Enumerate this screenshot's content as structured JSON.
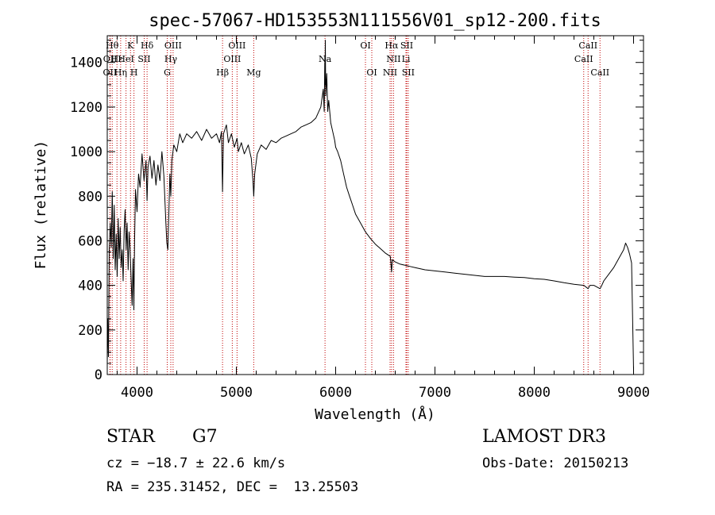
{
  "chart_data": {
    "type": "line",
    "title": "spec-57067-HD153553N111556V01_sp12-200.fits",
    "xlabel": "Wavelength (Å)",
    "ylabel": "Flux (relative)",
    "xlim": [
      3700,
      9100
    ],
    "ylim": [
      0,
      1520
    ],
    "x_ticks": [
      4000,
      5000,
      6000,
      7000,
      8000,
      9000
    ],
    "y_ticks": [
      0,
      200,
      400,
      600,
      800,
      1000,
      1200,
      1400
    ],
    "series": [
      {
        "name": "flux",
        "points": [
          [
            3700,
            50
          ],
          [
            3705,
            250
          ],
          [
            3712,
            80
          ],
          [
            3720,
            560
          ],
          [
            3730,
            680
          ],
          [
            3740,
            570
          ],
          [
            3750,
            820
          ],
          [
            3760,
            520
          ],
          [
            3770,
            760
          ],
          [
            3780,
            470
          ],
          [
            3790,
            630
          ],
          [
            3800,
            440
          ],
          [
            3810,
            700
          ],
          [
            3820,
            520
          ],
          [
            3830,
            660
          ],
          [
            3840,
            480
          ],
          [
            3850,
            560
          ],
          [
            3860,
            420
          ],
          [
            3870,
            650
          ],
          [
            3880,
            740
          ],
          [
            3890,
            560
          ],
          [
            3900,
            680
          ],
          [
            3910,
            470
          ],
          [
            3920,
            640
          ],
          [
            3930,
            560
          ],
          [
            3940,
            430
          ],
          [
            3950,
            310
          ],
          [
            3960,
            520
          ],
          [
            3968,
            290
          ],
          [
            3975,
            600
          ],
          [
            3985,
            830
          ],
          [
            4000,
            730
          ],
          [
            4015,
            900
          ],
          [
            4030,
            840
          ],
          [
            4050,
            990
          ],
          [
            4070,
            870
          ],
          [
            4090,
            960
          ],
          [
            4101,
            780
          ],
          [
            4110,
            930
          ],
          [
            4130,
            980
          ],
          [
            4150,
            880
          ],
          [
            4170,
            960
          ],
          [
            4190,
            850
          ],
          [
            4210,
            940
          ],
          [
            4230,
            870
          ],
          [
            4250,
            1000
          ],
          [
            4270,
            890
          ],
          [
            4290,
            680
          ],
          [
            4300,
            590
          ],
          [
            4310,
            560
          ],
          [
            4320,
            720
          ],
          [
            4330,
            900
          ],
          [
            4340,
            800
          ],
          [
            4350,
            960
          ],
          [
            4370,
            1030
          ],
          [
            4400,
            1000
          ],
          [
            4430,
            1080
          ],
          [
            4460,
            1040
          ],
          [
            4500,
            1080
          ],
          [
            4550,
            1060
          ],
          [
            4600,
            1090
          ],
          [
            4650,
            1050
          ],
          [
            4700,
            1100
          ],
          [
            4750,
            1060
          ],
          [
            4800,
            1080
          ],
          [
            4830,
            1040
          ],
          [
            4850,
            1090
          ],
          [
            4861,
            820
          ],
          [
            4870,
            1080
          ],
          [
            4900,
            1120
          ],
          [
            4920,
            1040
          ],
          [
            4950,
            1080
          ],
          [
            4980,
            1020
          ],
          [
            5007,
            1060
          ],
          [
            5020,
            1000
          ],
          [
            5050,
            1040
          ],
          [
            5080,
            990
          ],
          [
            5120,
            1030
          ],
          [
            5150,
            970
          ],
          [
            5167,
            870
          ],
          [
            5175,
            800
          ],
          [
            5185,
            900
          ],
          [
            5210,
            990
          ],
          [
            5250,
            1030
          ],
          [
            5300,
            1010
          ],
          [
            5350,
            1050
          ],
          [
            5400,
            1040
          ],
          [
            5450,
            1060
          ],
          [
            5500,
            1070
          ],
          [
            5550,
            1080
          ],
          [
            5600,
            1090
          ],
          [
            5650,
            1110
          ],
          [
            5700,
            1120
          ],
          [
            5750,
            1130
          ],
          [
            5800,
            1150
          ],
          [
            5850,
            1200
          ],
          [
            5875,
            1280
          ],
          [
            5885,
            1180
          ],
          [
            5890,
            1400
          ],
          [
            5893,
            1300
          ],
          [
            5896,
            1500
          ],
          [
            5900,
            1250
          ],
          [
            5910,
            1350
          ],
          [
            5920,
            1180
          ],
          [
            5930,
            1230
          ],
          [
            5950,
            1130
          ],
          [
            5970,
            1090
          ],
          [
            5990,
            1050
          ],
          [
            6000,
            1020
          ],
          [
            6020,
            1000
          ],
          [
            6050,
            960
          ],
          [
            6080,
            900
          ],
          [
            6110,
            840
          ],
          [
            6140,
            800
          ],
          [
            6170,
            760
          ],
          [
            6200,
            720
          ],
          [
            6250,
            680
          ],
          [
            6300,
            640
          ],
          [
            6350,
            610
          ],
          [
            6400,
            585
          ],
          [
            6450,
            565
          ],
          [
            6500,
            545
          ],
          [
            6550,
            530
          ],
          [
            6563,
            460
          ],
          [
            6570,
            515
          ],
          [
            6600,
            505
          ],
          [
            6650,
            495
          ],
          [
            6700,
            490
          ],
          [
            6750,
            485
          ],
          [
            6800,
            480
          ],
          [
            6900,
            470
          ],
          [
            7000,
            465
          ],
          [
            7100,
            460
          ],
          [
            7200,
            455
          ],
          [
            7300,
            450
          ],
          [
            7400,
            445
          ],
          [
            7500,
            440
          ],
          [
            7600,
            440
          ],
          [
            7700,
            440
          ],
          [
            7800,
            437
          ],
          [
            7900,
            435
          ],
          [
            8000,
            430
          ],
          [
            8100,
            427
          ],
          [
            8200,
            420
          ],
          [
            8300,
            412
          ],
          [
            8400,
            405
          ],
          [
            8500,
            400
          ],
          [
            8542,
            385
          ],
          [
            8560,
            400
          ],
          [
            8600,
            400
          ],
          [
            8662,
            385
          ],
          [
            8680,
            400
          ],
          [
            8700,
            420
          ],
          [
            8750,
            450
          ],
          [
            8800,
            480
          ],
          [
            8850,
            520
          ],
          [
            8900,
            560
          ],
          [
            8920,
            590
          ],
          [
            8940,
            570
          ],
          [
            8960,
            540
          ],
          [
            8980,
            500
          ],
          [
            9000,
            20
          ]
        ]
      }
    ],
    "lines": [
      {
        "wl": 3750,
        "row": 1,
        "label": "Hθ"
      },
      {
        "wl": 3729,
        "row": 2,
        "label": "OII"
      },
      {
        "wl": 3727,
        "row": 3,
        "label": "OII"
      },
      {
        "wl": 3798,
        "row": 2,
        "label": "Hε"
      },
      {
        "wl": 3835,
        "row": 3,
        "label": "Hη"
      },
      {
        "wl": 3889,
        "row": 2,
        "label": "HeI"
      },
      {
        "wl": 3934,
        "row": 1,
        "label": "K"
      },
      {
        "wl": 3969,
        "row": 3,
        "label": "H"
      },
      {
        "wl": 4072,
        "row": 2,
        "label": "SII"
      },
      {
        "wl": 4101,
        "row": 1,
        "label": "Hδ"
      },
      {
        "wl": 4304,
        "row": 3,
        "label": "G"
      },
      {
        "wl": 4340,
        "row": 2,
        "label": "Hγ"
      },
      {
        "wl": 4363,
        "row": 1,
        "label": "OIII"
      },
      {
        "wl": 4861,
        "row": 3,
        "label": "Hβ"
      },
      {
        "wl": 4959,
        "row": 2,
        "label": "OIII"
      },
      {
        "wl": 5007,
        "row": 1,
        "label": "OIII"
      },
      {
        "wl": 5175,
        "row": 3,
        "label": "Mg"
      },
      {
        "wl": 5893,
        "row": 2,
        "label": "Na"
      },
      {
        "wl": 6300,
        "row": 1,
        "label": "OI"
      },
      {
        "wl": 6364,
        "row": 3,
        "label": "OI"
      },
      {
        "wl": 6548,
        "row": 3,
        "label": "NII"
      },
      {
        "wl": 6563,
        "row": 1,
        "label": "Hα"
      },
      {
        "wl": 6583,
        "row": 2,
        "label": "NII"
      },
      {
        "wl": 6708,
        "row": 2,
        "label": "Li"
      },
      {
        "wl": 6716,
        "row": 1,
        "label": "SII"
      },
      {
        "wl": 6731,
        "row": 3,
        "label": "SII"
      },
      {
        "wl": 8498,
        "row": 2,
        "label": "CaII"
      },
      {
        "wl": 8542,
        "row": 1,
        "label": "CaII"
      },
      {
        "wl": 8662,
        "row": 3,
        "label": "CaII"
      }
    ]
  },
  "info": {
    "class": "STAR",
    "subclass": "G7",
    "survey": "LAMOST DR3",
    "cz": "cz = −18.7 ± 22.6 km/s",
    "obs_date": "Obs-Date: 20150213",
    "radec": "RA = 235.31452, DEC =  13.25503"
  },
  "colors": {
    "axis": "#000000",
    "spectrum": "#000000",
    "line_marker": "#c00000"
  }
}
